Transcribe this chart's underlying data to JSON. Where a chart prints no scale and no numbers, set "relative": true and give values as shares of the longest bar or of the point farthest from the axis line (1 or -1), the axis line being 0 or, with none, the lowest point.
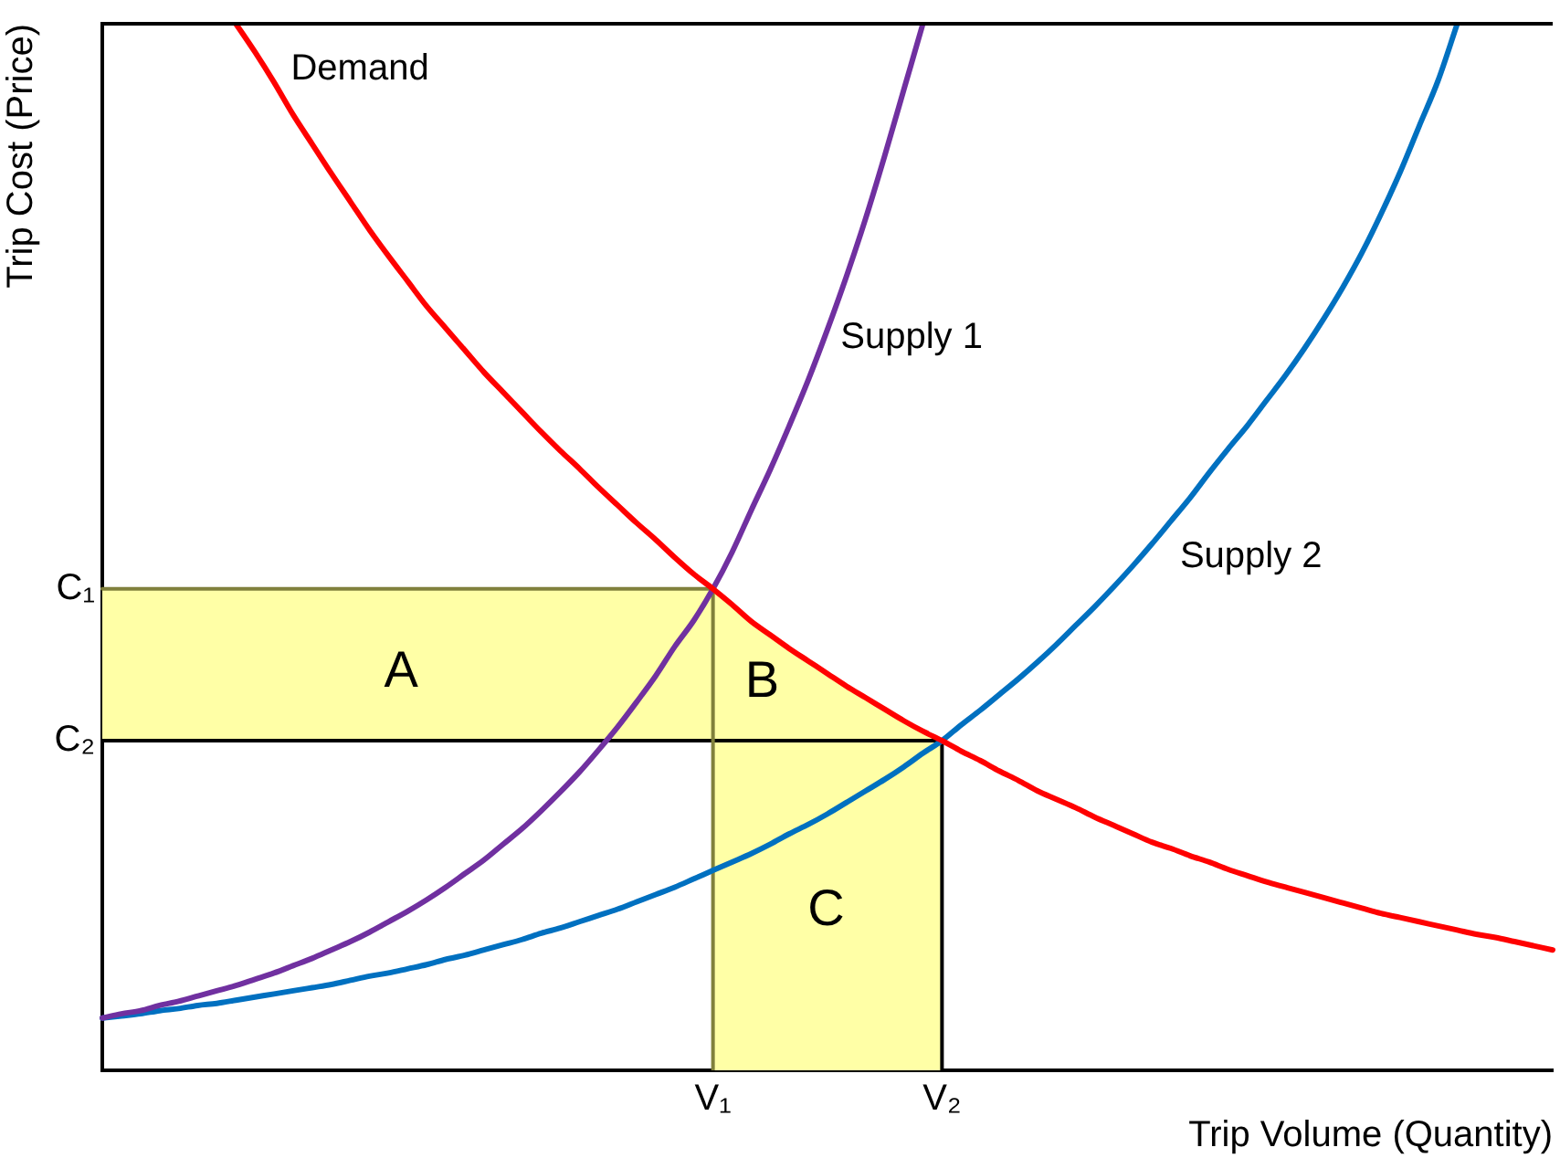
{
  "chart_data": {
    "type": "line",
    "relative": true,
    "xlabel": "Trip Volume (Quantity)",
    "ylabel": "Trip Cost (Price)",
    "categories": [
      null,
      null,
      null,
      null,
      null,
      null,
      null,
      null,
      null,
      null,
      null,
      null,
      null,
      null,
      null,
      null,
      null,
      null,
      null,
      null,
      null,
      null,
      null,
      null,
      null,
      null,
      null,
      null,
      null,
      null,
      null,
      null,
      "V₁",
      null,
      null,
      null,
      null,
      null,
      null,
      null,
      null,
      null,
      null,
      null,
      "V₂",
      null,
      null,
      null,
      null,
      null,
      null,
      null,
      null,
      null,
      null,
      null,
      null,
      null,
      null,
      null,
      null,
      null,
      null,
      null,
      null,
      null,
      null,
      null,
      null,
      null,
      null,
      null,
      null,
      null,
      null,
      null,
      null
    ],
    "series": [
      {
        "type": "area",
        "color": "#ffffa6",
        "values": [
          null,
          null,
          null,
          null,
          null,
          null,
          null,
          null,
          null,
          null,
          null,
          null,
          null,
          null,
          null,
          null,
          null,
          null,
          null,
          null,
          null,
          null,
          null,
          null,
          null,
          null,
          null,
          null,
          null,
          null,
          null,
          null,
          0.46,
          0.445,
          0.429,
          0.416,
          0.403,
          0.391,
          0.379,
          0.367,
          0.356,
          0.345,
          0.334,
          0.324,
          0.315,
          null,
          null,
          null,
          null,
          null,
          null,
          null,
          null,
          null,
          null,
          null,
          null,
          null,
          null,
          null,
          null,
          null,
          null,
          null,
          null,
          null,
          null,
          null,
          null,
          null,
          null,
          null,
          null,
          null,
          null,
          null,
          null
        ],
        "upper": [
          0.46,
          0.46,
          0.46,
          0.46,
          0.46,
          0.46,
          0.46,
          0.46,
          0.46,
          0.46,
          0.46,
          0.46,
          0.46,
          0.46,
          0.46,
          0.46,
          0.46,
          0.46,
          0.46,
          0.46,
          0.46,
          0.46,
          0.46,
          0.46,
          0.46,
          0.46,
          0.46,
          0.46,
          0.46,
          0.46,
          0.46,
          0.46,
          0.46,
          null,
          null,
          null,
          null,
          null,
          null,
          null,
          null,
          null,
          null,
          null,
          null,
          null,
          null,
          null,
          null,
          null,
          null,
          null,
          null,
          null,
          null,
          null,
          null,
          null,
          null,
          null,
          null,
          null,
          null,
          null,
          null,
          null,
          null,
          null,
          null,
          null,
          null,
          null,
          null,
          null,
          null,
          null,
          null
        ],
        "lower": [
          0.315,
          0.315,
          0.315,
          0.315,
          0.315,
          0.315,
          0.315,
          0.315,
          0.315,
          0.315,
          0.315,
          0.315,
          0.315,
          0.315,
          0.315,
          0.315,
          0.315,
          0.315,
          0.315,
          0.315,
          0.315,
          0.315,
          0.315,
          0.315,
          0.315,
          0.315,
          0.315,
          0.315,
          0.315,
          0.315,
          0.315,
          0.315,
          0.315,
          null,
          null,
          null,
          null,
          null,
          null,
          null,
          null,
          null,
          null,
          null,
          null,
          null,
          null,
          null,
          null,
          null,
          null,
          null,
          null,
          null,
          null,
          null,
          null,
          null,
          null,
          null,
          null,
          null,
          null,
          null,
          null,
          null,
          null,
          null,
          null,
          null,
          null,
          null,
          null,
          null,
          null,
          null,
          null
        ]
      },
      {
        "name": "Demand",
        "color": "#ff0000",
        "values": [
          null,
          null,
          null,
          null,
          null,
          null,
          null,
          1.0,
          0.973,
          0.944,
          0.913,
          0.885,
          0.857,
          0.83,
          0.803,
          0.778,
          0.754,
          0.73,
          0.709,
          0.688,
          0.667,
          0.648,
          0.629,
          0.61,
          0.592,
          0.575,
          0.557,
          0.54,
          0.523,
          0.507,
          0.49,
          0.474,
          0.46,
          0.445,
          0.429,
          0.416,
          0.403,
          0.391,
          0.379,
          0.367,
          0.356,
          0.345,
          0.334,
          0.324,
          0.315,
          0.305,
          0.296,
          0.286,
          0.277,
          0.267,
          0.259,
          0.251,
          0.242,
          0.234,
          0.226,
          0.218,
          0.212,
          0.205,
          0.199,
          0.192,
          0.186,
          0.18,
          0.175,
          0.17,
          0.165,
          0.16,
          0.155,
          0.15,
          0.146,
          0.142,
          0.138,
          0.134,
          0.13,
          0.127,
          0.123,
          0.119,
          0.115
        ]
      },
      {
        "name": "Supply 1",
        "color": "#7030a0",
        "values": [
          0.05,
          0.054,
          0.057,
          0.062,
          0.066,
          0.071,
          0.076,
          0.081,
          0.087,
          0.093,
          0.1,
          0.107,
          0.115,
          0.123,
          0.132,
          0.142,
          0.152,
          0.163,
          0.175,
          0.188,
          0.201,
          0.216,
          0.231,
          0.248,
          0.266,
          0.285,
          0.306,
          0.328,
          0.352,
          0.377,
          0.405,
          0.43,
          0.46,
          0.495,
          0.535,
          0.574,
          0.616,
          0.66,
          0.708,
          0.759,
          0.814,
          0.874,
          0.937,
          1.0,
          null,
          null,
          null,
          null,
          null,
          null,
          null,
          null,
          null,
          null,
          null,
          null,
          null,
          null,
          null,
          null,
          null,
          null,
          null,
          null,
          null,
          null,
          null,
          null,
          null,
          null,
          null,
          null,
          null,
          null,
          null,
          null,
          null
        ]
      },
      {
        "name": "Supply 2",
        "color": "#0070c0",
        "values": [
          0.05,
          0.052,
          0.054,
          0.057,
          0.059,
          0.062,
          0.064,
          0.067,
          0.07,
          0.073,
          0.076,
          0.079,
          0.082,
          0.086,
          0.09,
          0.093,
          0.097,
          0.101,
          0.106,
          0.11,
          0.115,
          0.12,
          0.125,
          0.131,
          0.136,
          0.142,
          0.148,
          0.154,
          0.161,
          0.168,
          0.175,
          0.183,
          0.191,
          0.199,
          0.207,
          0.216,
          0.226,
          0.235,
          0.245,
          0.256,
          0.267,
          0.278,
          0.29,
          0.303,
          0.315,
          0.33,
          0.344,
          0.359,
          0.374,
          0.39,
          0.407,
          0.425,
          0.443,
          0.462,
          0.482,
          0.503,
          0.525,
          0.547,
          0.571,
          0.594,
          0.616,
          0.64,
          0.664,
          0.69,
          0.718,
          0.748,
          0.781,
          0.818,
          0.858,
          0.902,
          0.946,
          1.0,
          null,
          null,
          null,
          null,
          null
        ]
      },
      {
        "type": "step",
        "name": "C₁",
        "color": "#80803c",
        "values": [
          0.46,
          0.46,
          0.46,
          0.46,
          0.46,
          0.46,
          0.46,
          0.46,
          0.46,
          0.46,
          0.46,
          0.46,
          0.46,
          0.46,
          0.46,
          0.46,
          0.46,
          0.46,
          0.46,
          0.46,
          0.46,
          0.46,
          0.46,
          0.46,
          0.46,
          0.46,
          0.46,
          0.46,
          0.46,
          0.46,
          0.46,
          0.46,
          0,
          null,
          null,
          null,
          null,
          null,
          null,
          null,
          null,
          null,
          null,
          null,
          null,
          null,
          null,
          null,
          null,
          null,
          null,
          null,
          null,
          null,
          null,
          null,
          null,
          null,
          null,
          null,
          null,
          null,
          null,
          null,
          null,
          null,
          null,
          null,
          null,
          null,
          null,
          null,
          null,
          null,
          null,
          null,
          null
        ]
      },
      {
        "type": "step",
        "name": "C₂",
        "color": "#000000",
        "values": [
          0.315,
          0.315,
          0.315,
          0.315,
          0.315,
          0.315,
          0.315,
          0.315,
          0.315,
          0.315,
          0.315,
          0.315,
          0.315,
          0.315,
          0.315,
          0.315,
          0.315,
          0.315,
          0.315,
          0.315,
          0.315,
          0.315,
          0.315,
          0.315,
          0.315,
          0.315,
          0.315,
          0.315,
          0.315,
          0.315,
          0.315,
          0.315,
          0.315,
          0.315,
          0.315,
          0.315,
          0.315,
          0.315,
          0.315,
          0.315,
          0.315,
          0.315,
          0.315,
          0.315,
          0,
          null,
          null,
          null,
          null,
          null,
          null,
          null,
          null,
          null,
          null,
          null,
          null,
          null,
          null,
          null,
          null,
          null,
          null,
          null,
          null,
          null,
          null,
          null,
          null,
          null,
          null,
          null,
          null,
          null,
          null,
          null,
          null
        ]
      }
    ],
    "annotations": [
      "A",
      "B",
      "C"
    ]
  }
}
